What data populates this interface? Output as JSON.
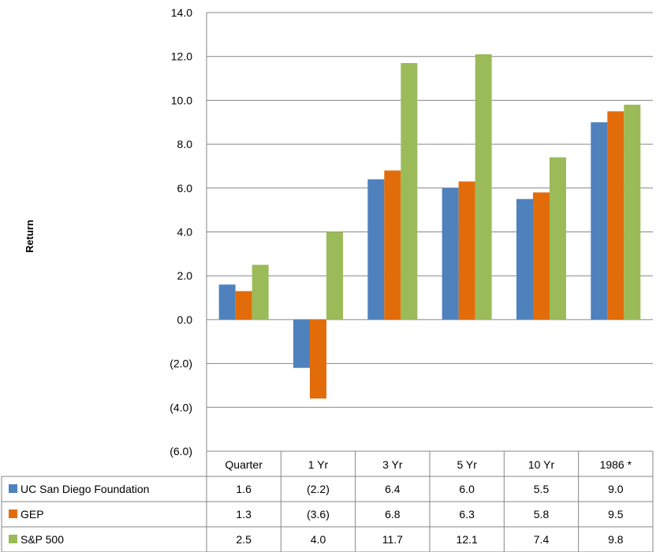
{
  "chart_data": {
    "type": "bar",
    "title": "",
    "ylabel": "Return",
    "xlabel": "",
    "ylim": [
      -6,
      14
    ],
    "ytick_step": 2,
    "ytick_labels": [
      "(6.0)",
      "(4.0)",
      "(2.0)",
      "0.0",
      "2.0",
      "4.0",
      "6.0",
      "8.0",
      "10.0",
      "12.0",
      "14.0"
    ],
    "grid": true,
    "legend": "data-table-below",
    "categories": [
      "Quarter",
      "1 Yr",
      "3 Yr",
      "5 Yr",
      "10 Yr",
      "1986 *"
    ],
    "series": [
      {
        "name": "UC San Diego Foundation",
        "color": "#4F81BD",
        "values": [
          1.6,
          -2.2,
          6.4,
          6.0,
          5.5,
          9.0
        ],
        "labels": [
          "1.6",
          "(2.2)",
          "6.4",
          "6.0",
          "5.5",
          "9.0"
        ]
      },
      {
        "name": "GEP",
        "color": "#E36C0A",
        "values": [
          1.3,
          -3.6,
          6.8,
          6.3,
          5.8,
          9.5
        ],
        "labels": [
          "1.3",
          "(3.6)",
          "6.8",
          "6.3",
          "5.8",
          "9.5"
        ]
      },
      {
        "name": "S&P 500",
        "color": "#9BBB59",
        "values": [
          2.5,
          4.0,
          11.7,
          12.1,
          7.4,
          9.8
        ],
        "labels": [
          "2.5",
          "4.0",
          "11.7",
          "12.1",
          "7.4",
          "9.8"
        ]
      }
    ]
  }
}
